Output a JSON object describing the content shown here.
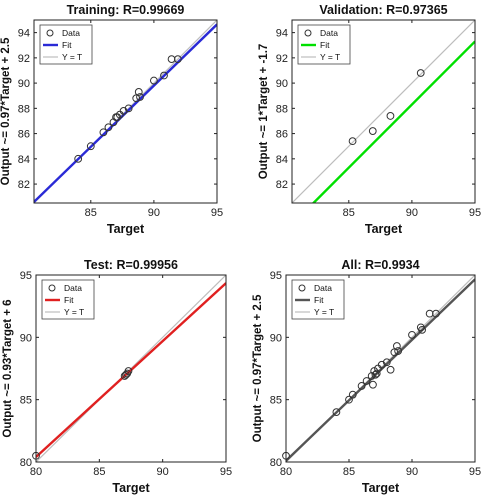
{
  "chart_data": [
    {
      "type": "scatter",
      "title": "Training: R=0.99669",
      "xlabel": "Target",
      "ylabel": "Output ~= 0.97*Target + 2.5",
      "xlim": [
        80.5,
        95
      ],
      "ylim": [
        80.5,
        95
      ],
      "xticks": [
        "85",
        "90",
        "95"
      ],
      "yticks": [
        "82",
        "84",
        "86",
        "88",
        "90",
        "92",
        "94"
      ],
      "xtick_values": [
        85,
        90,
        95
      ],
      "ytick_values": [
        82,
        84,
        86,
        88,
        90,
        92,
        94
      ],
      "fit": {
        "slope": 0.97,
        "intercept": 2.5,
        "color": "#2a2ad6"
      },
      "identity_color": "#bdbdbd",
      "legend": [
        "Data",
        "Fit",
        "Y = T"
      ],
      "legend_position": "top-left",
      "grid": false,
      "points": [
        [
          84.0,
          84.0
        ],
        [
          85.0,
          85.0
        ],
        [
          86.0,
          86.1
        ],
        [
          86.4,
          86.5
        ],
        [
          86.8,
          86.9
        ],
        [
          87.0,
          87.3
        ],
        [
          87.1,
          87.3
        ],
        [
          87.3,
          87.5
        ],
        [
          87.6,
          87.8
        ],
        [
          88.0,
          88.0
        ],
        [
          88.6,
          88.8
        ],
        [
          88.8,
          89.3
        ],
        [
          88.9,
          88.9
        ],
        [
          90.0,
          90.2
        ],
        [
          90.8,
          90.6
        ],
        [
          91.4,
          91.9
        ],
        [
          91.9,
          91.9
        ]
      ]
    },
    {
      "type": "scatter",
      "title": "Validation: R=0.97365",
      "xlabel": "Target",
      "ylabel": "Output ~= 1*Target + -1.7",
      "xlim": [
        80.5,
        95
      ],
      "ylim": [
        80.5,
        95
      ],
      "xticks": [
        "85",
        "90",
        "95"
      ],
      "yticks": [
        "82",
        "84",
        "86",
        "88",
        "90",
        "92",
        "94"
      ],
      "xtick_values": [
        85,
        90,
        95
      ],
      "ytick_values": [
        82,
        84,
        86,
        88,
        90,
        92,
        94
      ],
      "fit": {
        "slope": 1,
        "intercept": -1.7,
        "color": "#00e000"
      },
      "identity_color": "#bdbdbd",
      "legend": [
        "Data",
        "Fit",
        "Y = T"
      ],
      "legend_position": "top-left",
      "grid": false,
      "points": [
        [
          85.3,
          85.4
        ],
        [
          86.9,
          86.2
        ],
        [
          88.3,
          87.4
        ],
        [
          90.7,
          90.8
        ]
      ]
    },
    {
      "type": "scatter",
      "title": "Test: R=0.99956",
      "xlabel": "Target",
      "ylabel": "Output ~= 0.93*Target + 6",
      "xlim": [
        80,
        95
      ],
      "ylim": [
        80,
        95
      ],
      "xticks": [
        "80",
        "85",
        "90",
        "95"
      ],
      "yticks": [
        "80",
        "85",
        "90",
        "95"
      ],
      "xtick_values": [
        80,
        85,
        90,
        95
      ],
      "ytick_values": [
        80,
        85,
        90,
        95
      ],
      "fit": {
        "slope": 0.93,
        "intercept": 6,
        "color": "#e02020"
      },
      "identity_color": "#bdbdbd",
      "legend": [
        "Data",
        "Fit",
        "Y = T"
      ],
      "legend_position": "top-left",
      "grid": false,
      "points": [
        [
          80.0,
          80.5
        ],
        [
          87.0,
          86.9
        ],
        [
          87.1,
          87.0
        ],
        [
          87.2,
          87.1
        ],
        [
          87.3,
          87.3
        ]
      ]
    },
    {
      "type": "scatter",
      "title": "All: R=0.9934",
      "xlabel": "Target",
      "ylabel": "Output ~= 0.97*Target + 2.5",
      "xlim": [
        80,
        95
      ],
      "ylim": [
        80,
        95
      ],
      "xticks": [
        "80",
        "85",
        "90",
        "95"
      ],
      "yticks": [
        "80",
        "85",
        "90",
        "95"
      ],
      "xtick_values": [
        80,
        85,
        90,
        95
      ],
      "ytick_values": [
        80,
        85,
        90,
        95
      ],
      "fit": {
        "slope": 0.97,
        "intercept": 2.5,
        "color": "#555555"
      },
      "identity_color": "#bdbdbd",
      "legend": [
        "Data",
        "Fit",
        "Y = T"
      ],
      "legend_position": "top-left",
      "grid": false,
      "points": [
        [
          80.0,
          80.5
        ],
        [
          84.0,
          84.0
        ],
        [
          85.0,
          85.0
        ],
        [
          85.3,
          85.4
        ],
        [
          86.0,
          86.1
        ],
        [
          86.4,
          86.5
        ],
        [
          86.8,
          86.9
        ],
        [
          86.9,
          86.2
        ],
        [
          87.0,
          87.3
        ],
        [
          87.1,
          87.0
        ],
        [
          87.2,
          87.1
        ],
        [
          87.3,
          87.5
        ],
        [
          87.6,
          87.8
        ],
        [
          88.0,
          88.0
        ],
        [
          88.3,
          87.4
        ],
        [
          88.6,
          88.8
        ],
        [
          88.8,
          89.3
        ],
        [
          88.9,
          88.9
        ],
        [
          90.0,
          90.2
        ],
        [
          90.7,
          90.8
        ],
        [
          90.8,
          90.6
        ],
        [
          91.4,
          91.9
        ],
        [
          91.9,
          91.9
        ]
      ]
    }
  ]
}
